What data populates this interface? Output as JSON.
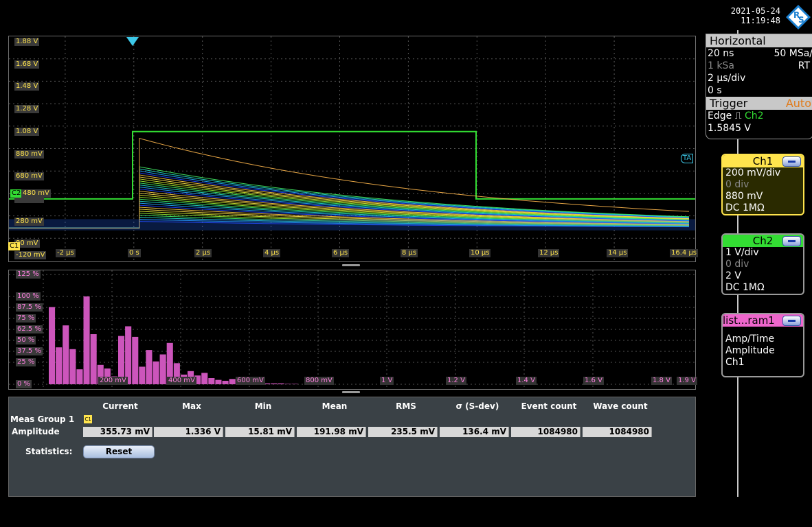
{
  "header": {
    "date": "2021-05-24",
    "time": "11:19:48"
  },
  "colors": {
    "ch1": "#ffe44d",
    "ch2": "#33dd33",
    "histogram": "#cc55bb",
    "panel_border": "#6f6f6f"
  },
  "waveform": {
    "y_labels": [
      "1.88 V",
      "1.68 V",
      "1.48 V",
      "1.28 V",
      "1.08 V",
      "880 mV",
      "680 mV",
      "480 mV",
      "280 mV",
      "80 mV",
      "-120 mV"
    ],
    "x_labels": [
      "-2 µs",
      "0 s",
      "2 µs",
      "4 µs",
      "6 µs",
      "8 µs",
      "10 µs",
      "12 µs",
      "14 µs",
      "16.4 µs"
    ],
    "ch1_marker": "C1",
    "ch2_marker": "C2",
    "ch2_level_label": "480 mV",
    "trigger_marker": "TA"
  },
  "histogram": {
    "y_labels": [
      "125 %",
      "100 %",
      "87.5 %",
      "75 %",
      "62.5 %",
      "50 %",
      "37.5 %",
      "25 %",
      "0 %"
    ],
    "x_labels": [
      "200 mV",
      "400 mV",
      "600 mV",
      "800 mV",
      "1 V",
      "1.2 V",
      "1.4 V",
      "1.6 V",
      "1.8 V",
      "1.9 V"
    ],
    "bins_percent": [
      88,
      42,
      67,
      40,
      17,
      100,
      57,
      22,
      18,
      9,
      55,
      66,
      54,
      20,
      39,
      26,
      34,
      47,
      24,
      11,
      15,
      10,
      13,
      7,
      5,
      4,
      6,
      3,
      2,
      2,
      1,
      1,
      1,
      1,
      0.5,
      0.5
    ]
  },
  "measurements": {
    "headers": [
      "Current",
      "Max",
      "Min",
      "Mean",
      "RMS",
      "σ (S-dev)",
      "Event count",
      "Wave count"
    ],
    "group_label": "Meas Group 1",
    "channel_tag": "C1",
    "row_label": "Amplitude",
    "values": [
      "355.73 mV",
      "1.336 V",
      "15.81 mV",
      "191.98 mV",
      "235.5 mV",
      "136.4 mV",
      "1084980",
      "1084980"
    ],
    "statistics_label": "Statistics:",
    "reset_label": "Reset"
  },
  "horizontal": {
    "title": "Horizontal",
    "resolution": "20 ns",
    "sample_rate": "50 MSa/",
    "record_length": "1 kSa",
    "mode": "RT",
    "time_scale": "2 µs/div",
    "position": "0 s"
  },
  "trigger": {
    "title": "Trigger",
    "mode": "Auto",
    "type": "Edge",
    "source": "Ch2",
    "level": "1.5845 V"
  },
  "ch1": {
    "title": "Ch1",
    "scale": "200 mV/div",
    "offset_div": "0 div",
    "offset": "880 mV",
    "coupling": "DC 1MΩ"
  },
  "ch2": {
    "title": "Ch2",
    "scale": "1 V/div",
    "offset_div": "0 div",
    "offset": "2 V",
    "coupling": "DC 1MΩ"
  },
  "hist_panel": {
    "title": "list...ram1",
    "line1": "Amp/Time",
    "line2": "Amplitude",
    "line3": "Ch1"
  }
}
